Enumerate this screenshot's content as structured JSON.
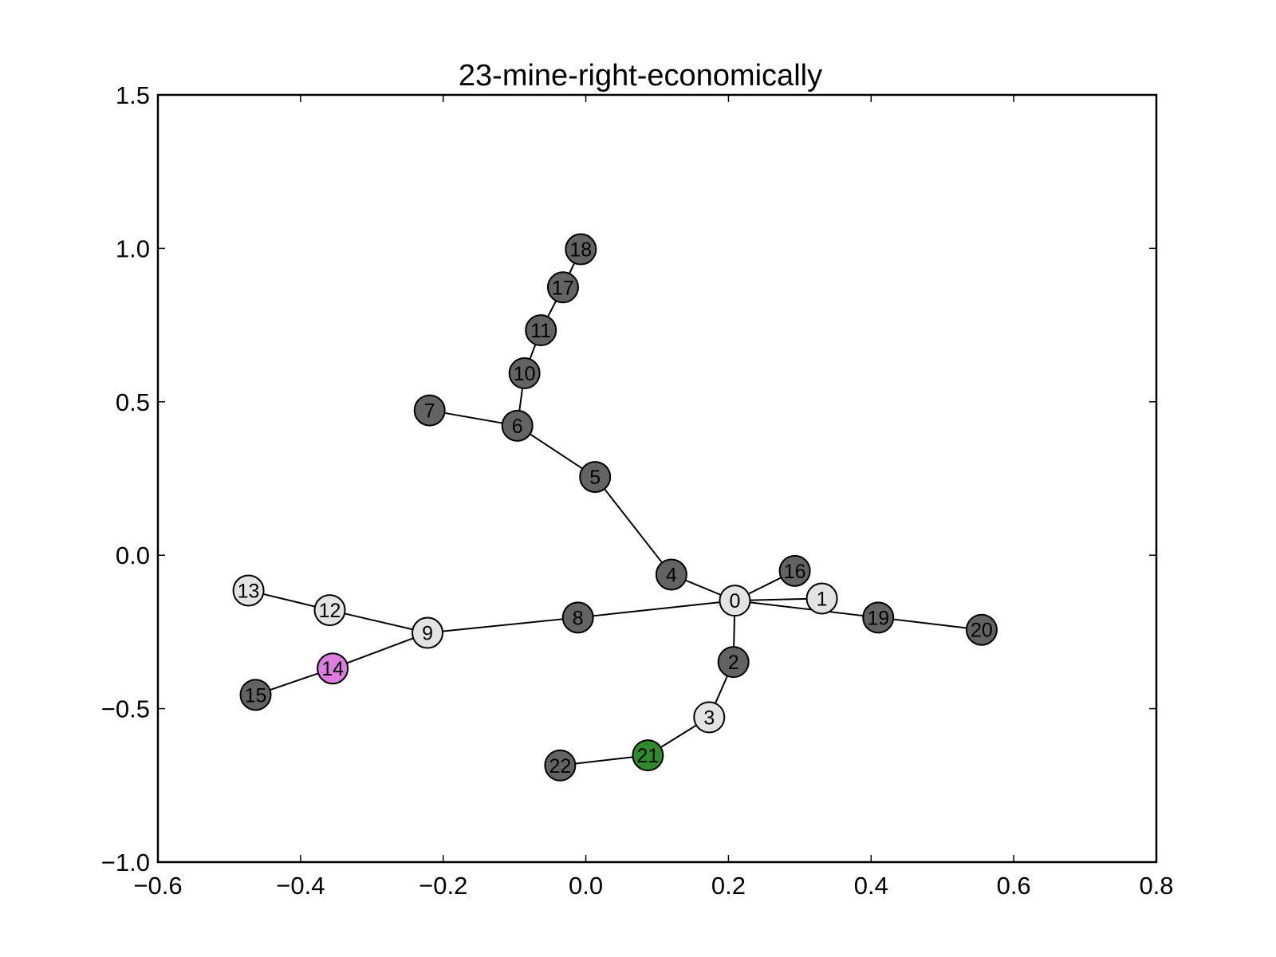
{
  "chart_data": {
    "type": "network",
    "title": "23-mine-right-economically",
    "xlim": [
      -0.6,
      0.8
    ],
    "ylim": [
      -1.0,
      1.5
    ],
    "x_ticks": [
      -0.6,
      -0.4,
      -0.2,
      0.0,
      0.2,
      0.4,
      0.6,
      0.8
    ],
    "x_tick_labels": [
      "−0.6",
      "−0.4",
      "−0.2",
      "0.0",
      "0.2",
      "0.4",
      "0.6",
      "0.8"
    ],
    "y_ticks": [
      -1.0,
      -0.5,
      0.0,
      0.5,
      1.0,
      1.5
    ],
    "y_tick_labels": [
      "−1.0",
      "−0.5",
      "0.0",
      "0.5",
      "1.0",
      "1.5"
    ],
    "grid": false,
    "colors": {
      "dark": "#636363",
      "light": "#e3e3e3",
      "green": "#2e8a2a",
      "purple": "#dc7ee0",
      "edge": "#000000"
    },
    "nodes": [
      {
        "id": "0",
        "x": 0.209,
        "y": -0.148,
        "color": "light"
      },
      {
        "id": "1",
        "x": 0.331,
        "y": -0.141,
        "color": "light"
      },
      {
        "id": "2",
        "x": 0.207,
        "y": -0.348,
        "color": "dark"
      },
      {
        "id": "3",
        "x": 0.173,
        "y": -0.528,
        "color": "light"
      },
      {
        "id": "4",
        "x": 0.12,
        "y": -0.063,
        "color": "dark"
      },
      {
        "id": "5",
        "x": 0.013,
        "y": 0.255,
        "color": "dark"
      },
      {
        "id": "6",
        "x": -0.096,
        "y": 0.422,
        "color": "dark"
      },
      {
        "id": "7",
        "x": -0.219,
        "y": 0.472,
        "color": "dark"
      },
      {
        "id": "8",
        "x": -0.011,
        "y": -0.203,
        "color": "dark"
      },
      {
        "id": "9",
        "x": -0.222,
        "y": -0.253,
        "color": "light"
      },
      {
        "id": "10",
        "x": -0.086,
        "y": 0.593,
        "color": "dark"
      },
      {
        "id": "11",
        "x": -0.063,
        "y": 0.733,
        "color": "dark"
      },
      {
        "id": "12",
        "x": -0.359,
        "y": -0.179,
        "color": "light"
      },
      {
        "id": "13",
        "x": -0.473,
        "y": -0.115,
        "color": "light"
      },
      {
        "id": "14",
        "x": -0.355,
        "y": -0.369,
        "color": "purple"
      },
      {
        "id": "15",
        "x": -0.463,
        "y": -0.455,
        "color": "dark"
      },
      {
        "id": "16",
        "x": 0.293,
        "y": -0.051,
        "color": "dark"
      },
      {
        "id": "17",
        "x": -0.032,
        "y": 0.873,
        "color": "dark"
      },
      {
        "id": "18",
        "x": -0.007,
        "y": 0.997,
        "color": "dark"
      },
      {
        "id": "19",
        "x": 0.41,
        "y": -0.203,
        "color": "dark"
      },
      {
        "id": "20",
        "x": 0.555,
        "y": -0.243,
        "color": "dark"
      },
      {
        "id": "21",
        "x": 0.087,
        "y": -0.652,
        "color": "green"
      },
      {
        "id": "22",
        "x": -0.036,
        "y": -0.685,
        "color": "dark"
      }
    ],
    "edges": [
      [
        "0",
        "1"
      ],
      [
        "0",
        "2"
      ],
      [
        "0",
        "4"
      ],
      [
        "0",
        "8"
      ],
      [
        "0",
        "16"
      ],
      [
        "0",
        "19"
      ],
      [
        "19",
        "20"
      ],
      [
        "2",
        "3"
      ],
      [
        "3",
        "21"
      ],
      [
        "21",
        "22"
      ],
      [
        "4",
        "5"
      ],
      [
        "5",
        "6"
      ],
      [
        "6",
        "7"
      ],
      [
        "6",
        "10"
      ],
      [
        "10",
        "11"
      ],
      [
        "11",
        "17"
      ],
      [
        "17",
        "18"
      ],
      [
        "8",
        "9"
      ],
      [
        "9",
        "12"
      ],
      [
        "12",
        "13"
      ],
      [
        "9",
        "14"
      ],
      [
        "14",
        "15"
      ]
    ]
  }
}
